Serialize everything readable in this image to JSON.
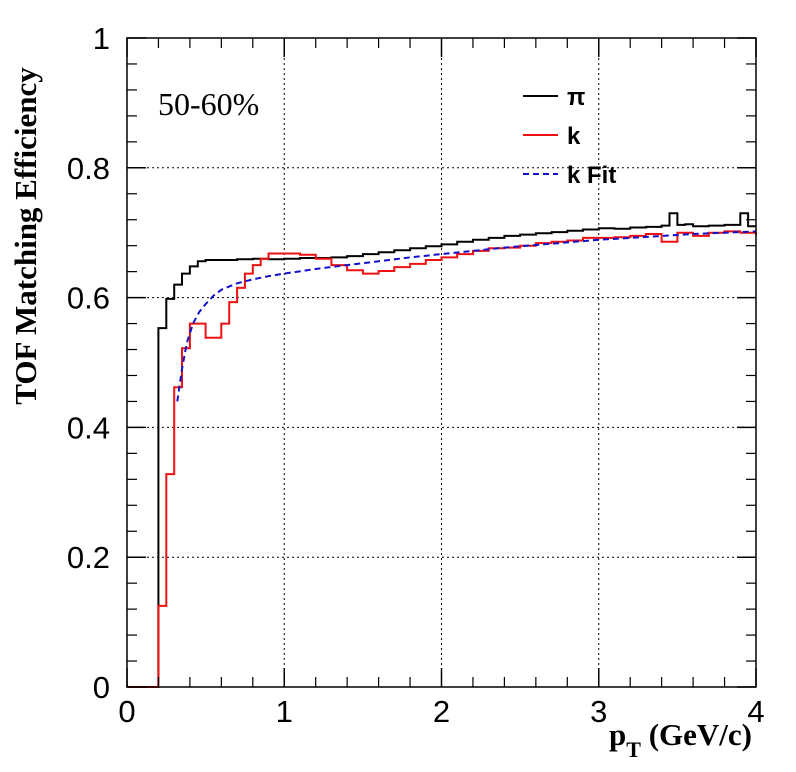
{
  "chart_data": {
    "type": "line",
    "xlabel_main": "p",
    "xlabel_sub": "T",
    "xlabel_units": " (GeV/c)",
    "ylabel": "TOF Matching Efficiency",
    "annotation": "50-60%",
    "xlim": [
      0,
      4
    ],
    "ylim": [
      0,
      1
    ],
    "x_ticks": [
      {
        "value": 0,
        "label": "0"
      },
      {
        "value": 1,
        "label": "1"
      },
      {
        "value": 2,
        "label": "2"
      },
      {
        "value": 3,
        "label": "3"
      },
      {
        "value": 4,
        "label": "4"
      }
    ],
    "y_ticks": [
      {
        "value": 0,
        "label": "0"
      },
      {
        "value": 0.2,
        "label": "0.2"
      },
      {
        "value": 0.4,
        "label": "0.4"
      },
      {
        "value": 0.6,
        "label": "0.6"
      },
      {
        "value": 0.8,
        "label": "0.8"
      },
      {
        "value": 1,
        "label": "1"
      }
    ],
    "grid": true,
    "legend_position": "top-right",
    "series": [
      {
        "name": "π",
        "color": "#000000",
        "style": "step",
        "dash": "",
        "x": [
          0.0,
          0.2,
          0.25,
          0.3,
          0.35,
          0.4,
          0.45,
          0.5,
          0.6,
          0.7,
          0.8,
          0.9,
          1.0,
          1.1,
          1.2,
          1.3,
          1.4,
          1.5,
          1.6,
          1.7,
          1.8,
          1.9,
          2.0,
          2.1,
          2.2,
          2.3,
          2.4,
          2.5,
          2.6,
          2.7,
          2.8,
          2.9,
          3.0,
          3.1,
          3.2,
          3.3,
          3.4,
          3.45,
          3.5,
          3.55,
          3.6,
          3.7,
          3.8,
          3.9,
          3.95,
          4.0
        ],
        "y": [
          0.0,
          0.553,
          0.598,
          0.62,
          0.637,
          0.648,
          0.656,
          0.658,
          0.658,
          0.659,
          0.66,
          0.659,
          0.66,
          0.661,
          0.661,
          0.662,
          0.664,
          0.667,
          0.67,
          0.673,
          0.676,
          0.679,
          0.682,
          0.686,
          0.689,
          0.692,
          0.695,
          0.697,
          0.699,
          0.701,
          0.703,
          0.705,
          0.707,
          0.706,
          0.708,
          0.709,
          0.711,
          0.73,
          0.712,
          0.713,
          0.71,
          0.711,
          0.712,
          0.73,
          0.71,
          0.71
        ]
      },
      {
        "name": "k",
        "color": "#ee1111",
        "style": "step",
        "dash": "",
        "x": [
          0.0,
          0.2,
          0.25,
          0.3,
          0.35,
          0.4,
          0.5,
          0.6,
          0.65,
          0.7,
          0.75,
          0.8,
          0.85,
          0.9,
          1.0,
          1.1,
          1.2,
          1.3,
          1.4,
          1.5,
          1.6,
          1.7,
          1.8,
          1.9,
          2.0,
          2.1,
          2.2,
          2.3,
          2.4,
          2.5,
          2.6,
          2.7,
          2.8,
          2.9,
          3.0,
          3.1,
          3.2,
          3.3,
          3.4,
          3.5,
          3.6,
          3.7,
          3.8,
          3.9,
          4.0
        ],
        "y": [
          0.0,
          0.125,
          0.328,
          0.462,
          0.522,
          0.56,
          0.538,
          0.56,
          0.593,
          0.615,
          0.637,
          0.65,
          0.66,
          0.668,
          0.668,
          0.666,
          0.66,
          0.65,
          0.642,
          0.637,
          0.641,
          0.647,
          0.652,
          0.658,
          0.662,
          0.667,
          0.672,
          0.676,
          0.677,
          0.68,
          0.684,
          0.686,
          0.688,
          0.692,
          0.692,
          0.693,
          0.695,
          0.698,
          0.686,
          0.7,
          0.695,
          0.7,
          0.702,
          0.7,
          0.697
        ]
      },
      {
        "name": "k Fit",
        "color": "#1111cc",
        "style": "smooth",
        "dash": "6,4",
        "x": [
          0.32,
          0.35,
          0.38,
          0.42,
          0.46,
          0.5,
          0.55,
          0.6,
          0.7,
          0.8,
          0.9,
          1.0,
          1.2,
          1.4,
          1.6,
          1.8,
          2.0,
          2.2,
          2.4,
          2.6,
          2.8,
          3.0,
          3.2,
          3.4,
          3.6,
          3.8,
          4.0
        ],
        "y": [
          0.44,
          0.49,
          0.53,
          0.56,
          0.578,
          0.59,
          0.603,
          0.612,
          0.622,
          0.628,
          0.633,
          0.637,
          0.644,
          0.65,
          0.656,
          0.662,
          0.667,
          0.672,
          0.677,
          0.681,
          0.685,
          0.689,
          0.692,
          0.695,
          0.698,
          0.7,
          0.702
        ]
      }
    ]
  }
}
